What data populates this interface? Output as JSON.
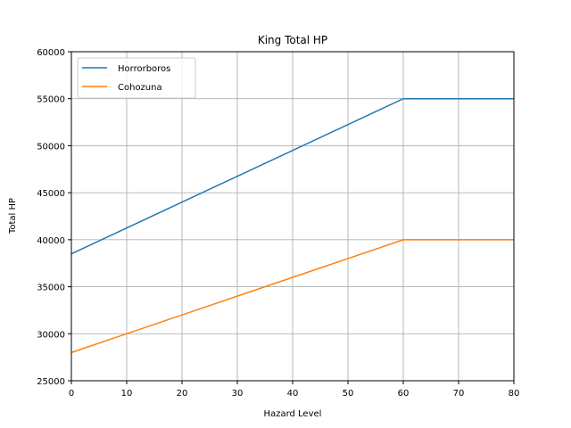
{
  "chart_data": {
    "type": "line",
    "title": "King Total HP",
    "xlabel": "Hazard Level",
    "ylabel": "Total HP",
    "xlim": [
      0,
      80
    ],
    "ylim": [
      25000,
      60000
    ],
    "xticks": [
      0,
      10,
      20,
      30,
      40,
      50,
      60,
      70,
      80
    ],
    "yticks": [
      25000,
      30000,
      35000,
      40000,
      45000,
      50000,
      55000,
      60000
    ],
    "grid": true,
    "legend_position": "upper left",
    "series": [
      {
        "name": "Horrorboros",
        "color": "#1f77b4",
        "x": [
          0,
          60,
          80
        ],
        "y": [
          38500,
          55000,
          55000
        ]
      },
      {
        "name": "Cohozuna",
        "color": "#ff7f0e",
        "x": [
          0,
          60,
          80
        ],
        "y": [
          28000,
          40000,
          40000
        ]
      }
    ]
  }
}
